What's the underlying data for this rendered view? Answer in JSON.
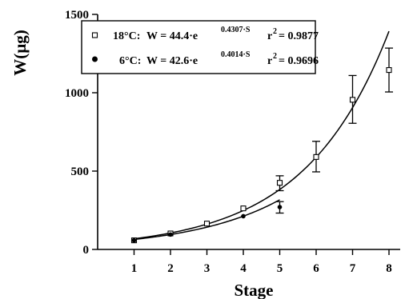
{
  "chart_data": {
    "type": "scatter",
    "xlabel": "Stage",
    "ylabel": "W(µg)",
    "xlim": [
      0,
      8.3
    ],
    "ylim": [
      0,
      1500
    ],
    "xticks": [
      1,
      2,
      3,
      4,
      5,
      6,
      7,
      8
    ],
    "yticks": [
      0,
      500,
      1000,
      1500
    ],
    "legend_placement": "top-left",
    "series": [
      {
        "name": "18°C",
        "marker": "open-square",
        "x": [
          1,
          2,
          3,
          4,
          5,
          6,
          7,
          8
        ],
        "y": [
          58,
          102,
          165,
          262,
          425,
          590,
          955,
          1145
        ],
        "err_low": [
          null,
          null,
          null,
          null,
          375,
          495,
          805,
          1005
        ],
        "err_high": [
          null,
          null,
          null,
          null,
          470,
          690,
          1110,
          1285
        ],
        "fit": {
          "a": 44.4,
          "b": 0.4307,
          "r2": "0.9877",
          "x_range": [
            1,
            8
          ]
        },
        "legend_condition": "18°C:",
        "legend_eq_base": "W = 44.4·e",
        "legend_eq_exp": "0.4307·S",
        "legend_r2_label": "r",
        "legend_r2_sup": "2",
        "legend_r2_value": "= 0.9877"
      },
      {
        "name": "6°C",
        "marker": "filled-circle",
        "x": [
          1,
          2,
          4,
          5
        ],
        "y": [
          58,
          95,
          212,
          270
        ],
        "err_low": [
          null,
          null,
          null,
          232
        ],
        "err_high": [
          null,
          null,
          null,
          305
        ],
        "fit": {
          "a": 42.6,
          "b": 0.4014,
          "r2": "0.9696",
          "x_range": [
            1,
            5
          ]
        },
        "legend_condition": "6°C:",
        "legend_eq_base": "W = 42.6·e",
        "legend_eq_exp": "0.4014·S",
        "legend_r2_label": "r",
        "legend_r2_sup": "2",
        "legend_r2_value": "= 0.9696"
      }
    ]
  }
}
